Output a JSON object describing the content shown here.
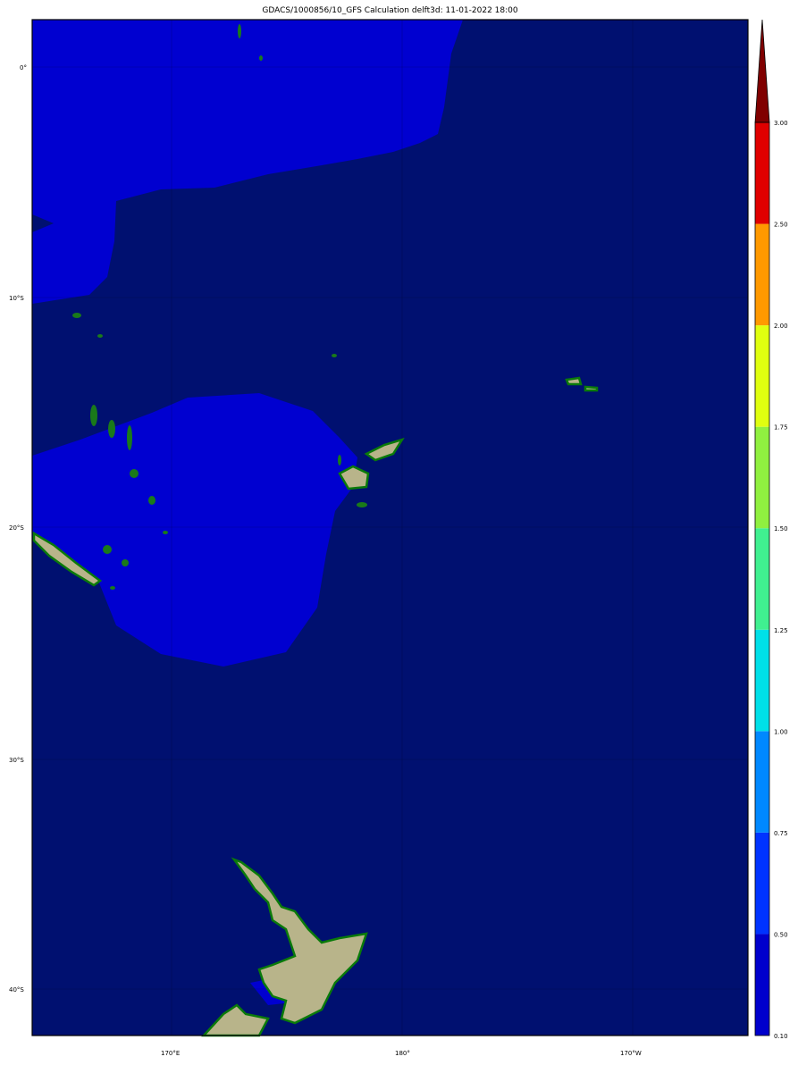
{
  "title": "GDACS/1000856/10_GFS Calculation delft3d: 11-01-2022 18:00",
  "map": {
    "lat_labels": [
      "0°",
      "10°S",
      "20°S",
      "30°S",
      "40°S"
    ],
    "lon_labels": [
      "170°E",
      "180°",
      "170°W"
    ],
    "colors": {
      "ocean_low": "#001070",
      "ocean_band": "#0000d0",
      "land": "#b8b48a",
      "coast": "#0a7a0a"
    }
  },
  "colorbar": {
    "ticks": [
      "0.10",
      "0.50",
      "0.75",
      "1.00",
      "1.25",
      "1.50",
      "1.75",
      "2.00",
      "2.50",
      "3.00"
    ],
    "colors": [
      "#0000cc",
      "#0033ff",
      "#0088ff",
      "#00e0e8",
      "#40f090",
      "#90f040",
      "#e0ff10",
      "#ff9900",
      "#e00000"
    ],
    "extend_color": "#800000"
  }
}
